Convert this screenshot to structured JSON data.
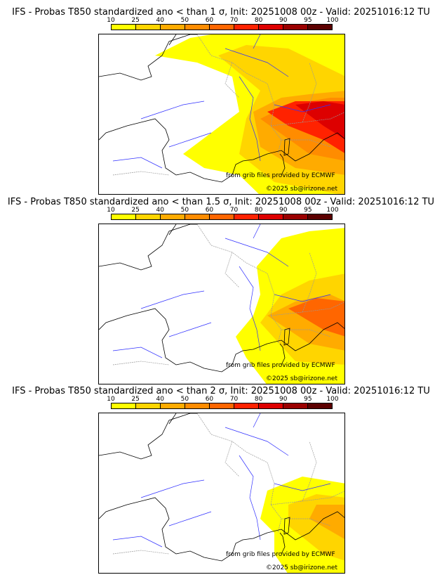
{
  "colorbar": {
    "ticks": [
      "10",
      "25",
      "40",
      "50",
      "60",
      "70",
      "80",
      "90",
      "95",
      "100"
    ],
    "colors": [
      "#ffff00",
      "#ffd500",
      "#ffab00",
      "#ff8c00",
      "#ff6600",
      "#ff2200",
      "#dd0000",
      "#9a0000",
      "#5c0000"
    ]
  },
  "panels": [
    {
      "title": "IFS - Probas T850  standardized ano < than 1 σ, Init: 20251008 00z - Valid: 20251016:12 TU",
      "level": 3
    },
    {
      "title": "IFS - Probas T850  standardized ano < than 1.5 σ, Init: 20251008 00z - Valid: 20251016:12 TU",
      "level": 2
    },
    {
      "title": "IFS - Probas T850  standardized ano < than 2 σ, Init: 20251008 00z - Valid: 20251016:12 TU",
      "level": 1
    }
  ],
  "credits": {
    "source": "from grib files provided by ECMWF",
    "copyright": "©2025 sb@irizone.net"
  }
}
